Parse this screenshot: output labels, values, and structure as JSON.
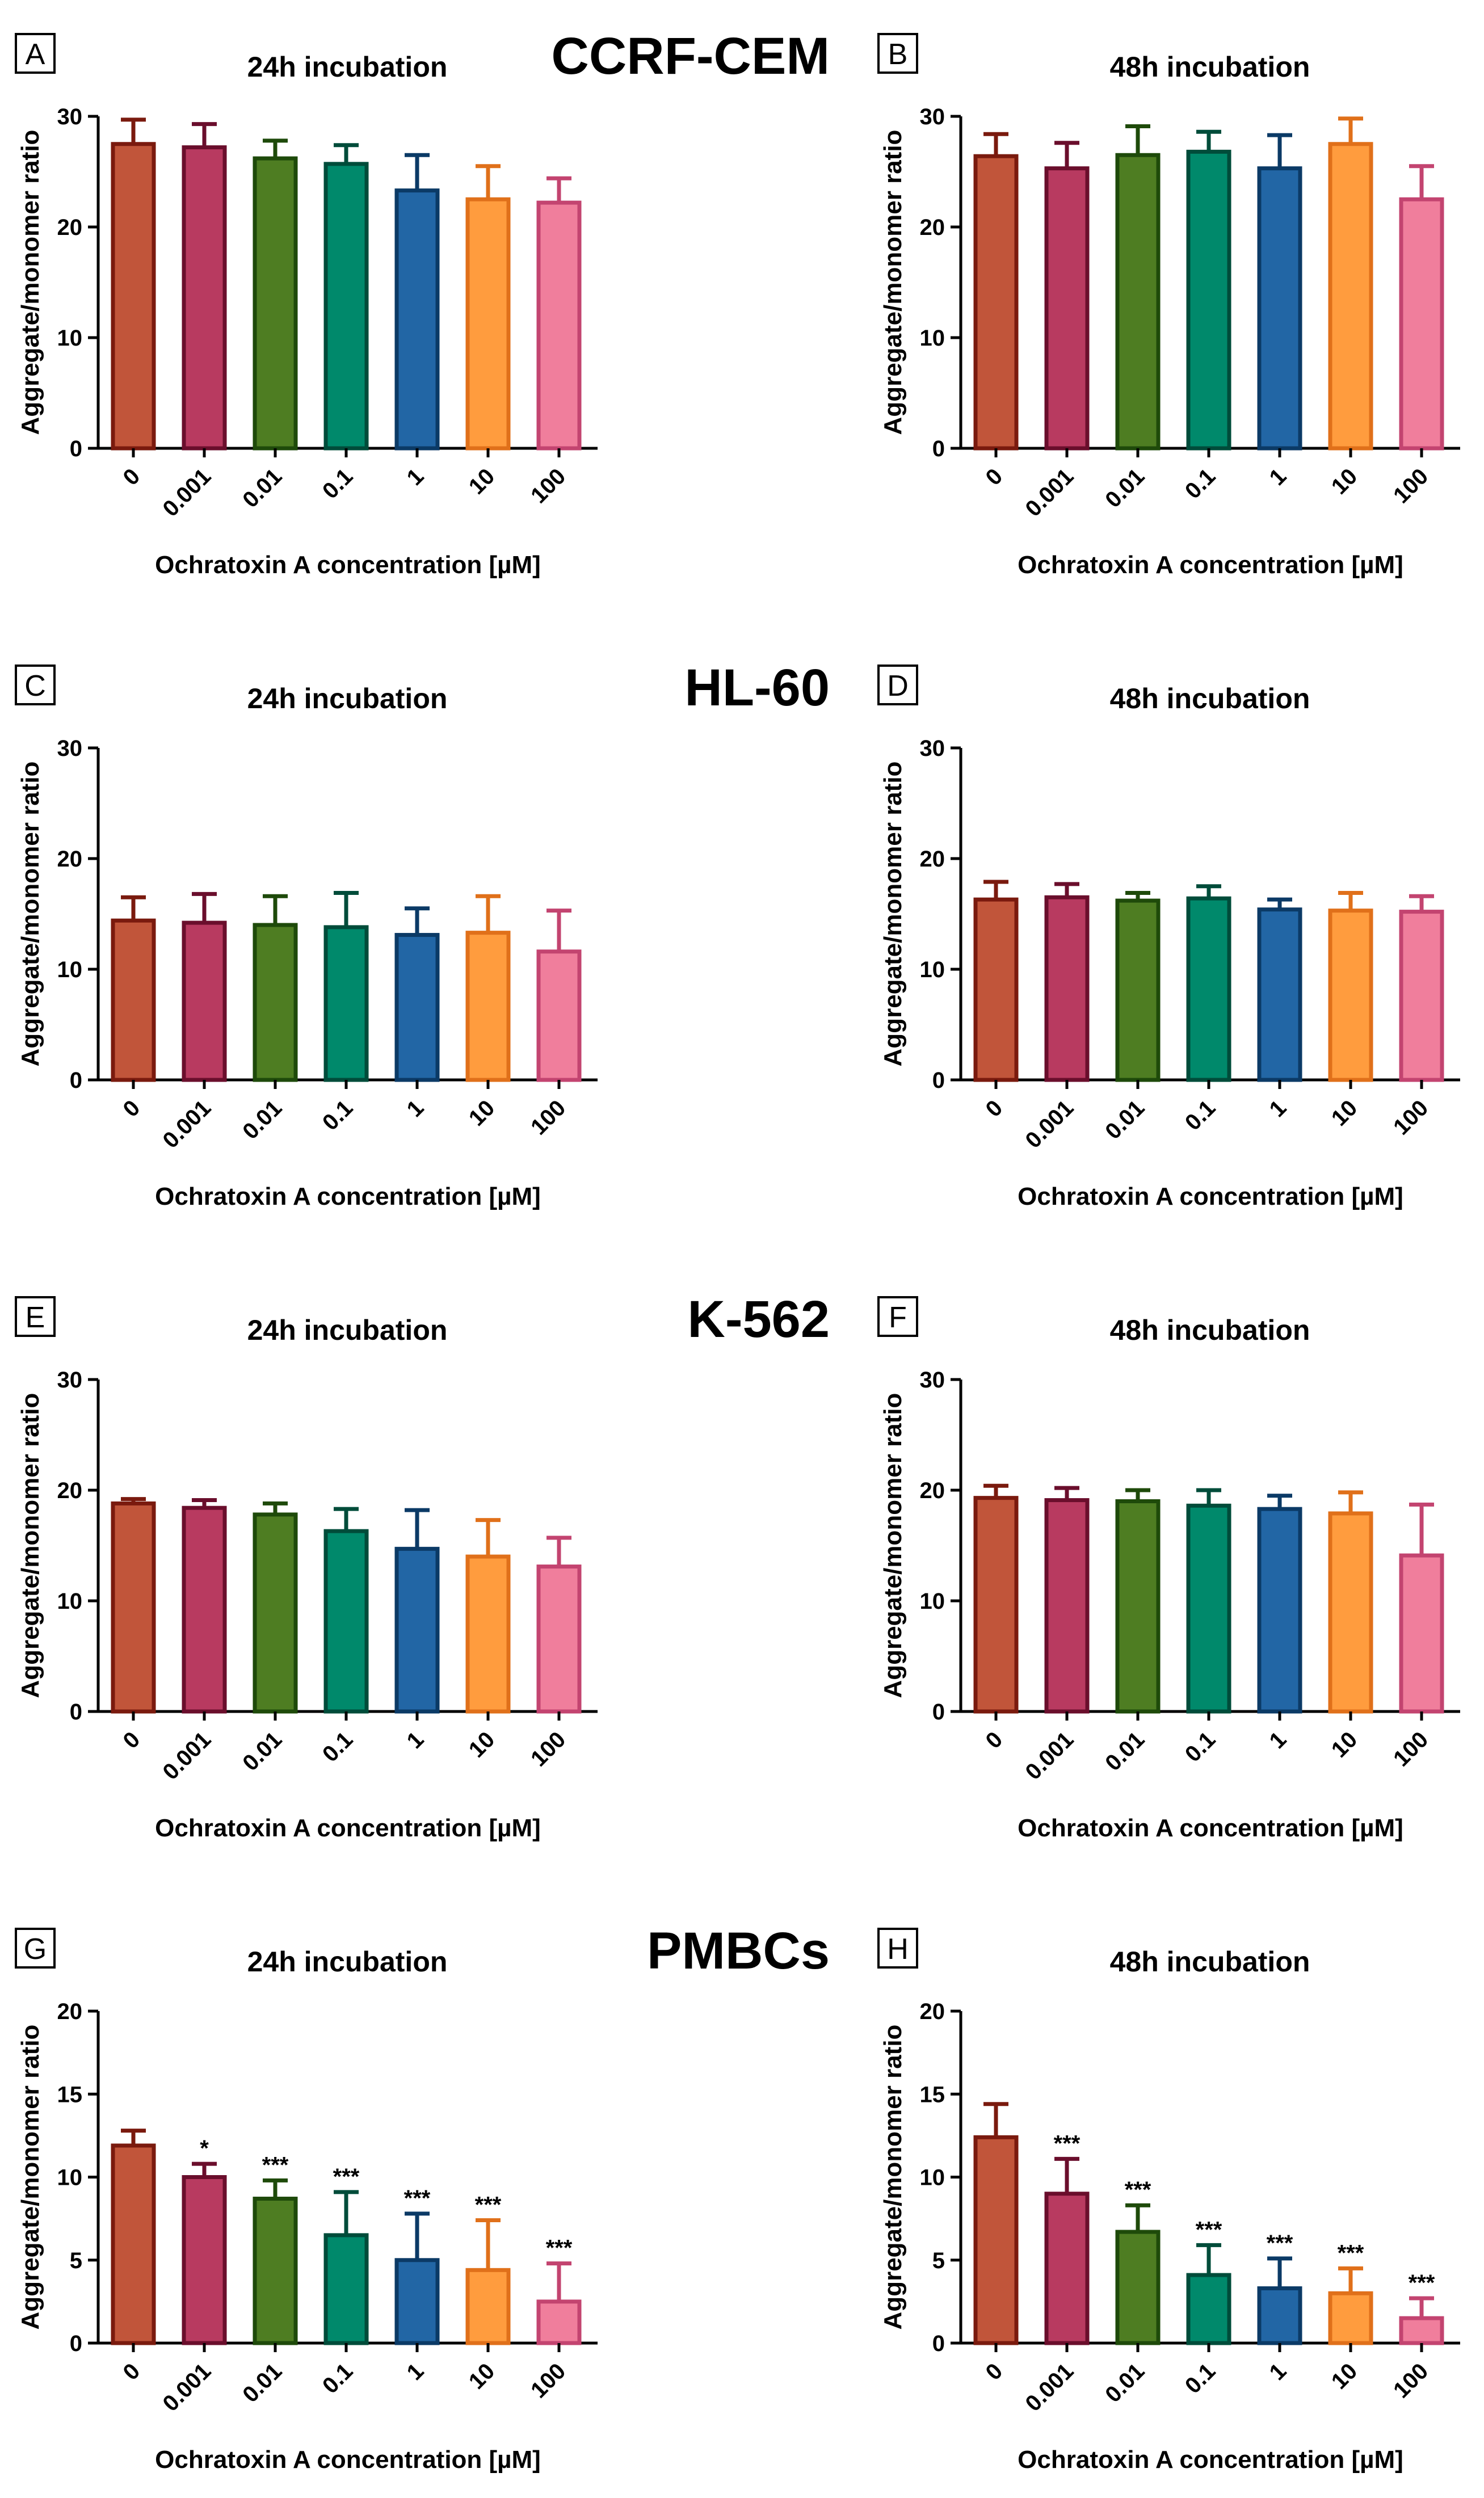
{
  "legend_categories": [
    "0",
    "0.001",
    "0.01",
    "0.1",
    "1",
    "10",
    "100"
  ],
  "series_colors": [
    {
      "fill": "#c1553a",
      "stroke": "#7a1a0e"
    },
    {
      "fill": "#b83a60",
      "stroke": "#6a0e2c"
    },
    {
      "fill": "#4e7d22",
      "stroke": "#1e4a0a"
    },
    {
      "fill": "#00896b",
      "stroke": "#004c3a"
    },
    {
      "fill": "#2266a5",
      "stroke": "#0b3a66"
    },
    {
      "fill": "#ff9c3e",
      "stroke": "#e0701a"
    },
    {
      "fill": "#f07e9c",
      "stroke": "#c34470"
    }
  ],
  "chart_data": [
    {
      "panel": "A",
      "cell_line": "CCRF-CEM",
      "title": "24h incubation",
      "type": "bar",
      "categories": [
        "0",
        "0.001",
        "0.01",
        "0.1",
        "1",
        "10",
        "100"
      ],
      "values": [
        27.5,
        27.2,
        26.2,
        25.7,
        23.3,
        22.5,
        22.2
      ],
      "errors": [
        2.2,
        2.1,
        1.6,
        1.7,
        3.2,
        3.0,
        2.2
      ],
      "significance": [
        "",
        "",
        "",
        "",
        "",
        "",
        ""
      ],
      "xlabel": "Ochratoxin A concentration [µM]",
      "ylabel": "Aggregate/monomer ratio",
      "ylim": [
        0,
        30
      ],
      "yticks": [
        "0",
        "10",
        "20",
        "30"
      ]
    },
    {
      "panel": "B",
      "cell_line": "",
      "title": "48h incubation",
      "type": "bar",
      "categories": [
        "0",
        "0.001",
        "0.01",
        "0.1",
        "1",
        "10",
        "100"
      ],
      "values": [
        26.4,
        25.3,
        26.5,
        26.8,
        25.3,
        27.5,
        22.5
      ],
      "errors": [
        2.0,
        2.3,
        2.6,
        1.8,
        3.0,
        2.3,
        3.0
      ],
      "significance": [
        "",
        "",
        "",
        "",
        "",
        "",
        ""
      ],
      "xlabel": "Ochratoxin A concentration [µM]",
      "ylabel": "Aggregate/monomer ratio",
      "ylim": [
        0,
        30
      ],
      "yticks": [
        "0",
        "10",
        "20",
        "30"
      ]
    },
    {
      "panel": "C",
      "cell_line": "HL-60",
      "title": "24h incubation",
      "type": "bar",
      "categories": [
        "0",
        "0.001",
        "0.01",
        "0.1",
        "1",
        "10",
        "100"
      ],
      "values": [
        14.4,
        14.2,
        14.0,
        13.8,
        13.1,
        13.3,
        11.6
      ],
      "errors": [
        2.1,
        2.6,
        2.6,
        3.1,
        2.4,
        3.3,
        3.7
      ],
      "significance": [
        "",
        "",
        "",
        "",
        "",
        "",
        ""
      ],
      "xlabel": "Ochratoxin A concentration [µM]",
      "ylabel": "Aggregate/monomer ratio",
      "ylim": [
        0,
        30
      ],
      "yticks": [
        "0",
        "10",
        "20",
        "30"
      ]
    },
    {
      "panel": "D",
      "cell_line": "",
      "title": "48h incubation",
      "type": "bar",
      "categories": [
        "0",
        "0.001",
        "0.01",
        "0.1",
        "1",
        "10",
        "100"
      ],
      "values": [
        16.3,
        16.5,
        16.2,
        16.4,
        15.4,
        15.3,
        15.2
      ],
      "errors": [
        1.6,
        1.2,
        0.7,
        1.1,
        0.9,
        1.6,
        1.4
      ],
      "significance": [
        "",
        "",
        "",
        "",
        "",
        "",
        ""
      ],
      "xlabel": "Ochratoxin A concentration [µM]",
      "ylabel": "Aggregate/monomer ratio",
      "ylim": [
        0,
        30
      ],
      "yticks": [
        "0",
        "10",
        "20",
        "30"
      ]
    },
    {
      "panel": "E",
      "cell_line": "K-562",
      "title": "24h incubation",
      "type": "bar",
      "categories": [
        "0",
        "0.001",
        "0.01",
        "0.1",
        "1",
        "10",
        "100"
      ],
      "values": [
        18.8,
        18.4,
        17.8,
        16.3,
        14.7,
        14.0,
        13.1
      ],
      "errors": [
        0.4,
        0.7,
        1.0,
        2.0,
        3.5,
        3.3,
        2.6
      ],
      "significance": [
        "",
        "",
        "",
        "",
        "",
        "",
        ""
      ],
      "xlabel": "Ochratoxin A concentration [µM]",
      "ylabel": "Aggregate/monomer ratio",
      "ylim": [
        0,
        30
      ],
      "yticks": [
        "0",
        "10",
        "20",
        "30"
      ]
    },
    {
      "panel": "F",
      "cell_line": "",
      "title": "48h incubation",
      "type": "bar",
      "categories": [
        "0",
        "0.001",
        "0.01",
        "0.1",
        "1",
        "10",
        "100"
      ],
      "values": [
        19.3,
        19.1,
        19.0,
        18.6,
        18.3,
        17.9,
        14.1
      ],
      "errors": [
        1.1,
        1.1,
        1.0,
        1.4,
        1.2,
        1.9,
        4.6
      ],
      "significance": [
        "",
        "",
        "",
        "",
        "",
        "",
        ""
      ],
      "xlabel": "Ochratoxin A concentration [µM]",
      "ylabel": "Aggregate/monomer ratio",
      "ylim": [
        0,
        30
      ],
      "yticks": [
        "0",
        "10",
        "20",
        "30"
      ]
    },
    {
      "panel": "G",
      "cell_line": "PMBCs",
      "title": "24h incubation",
      "type": "bar",
      "categories": [
        "0",
        "0.001",
        "0.01",
        "0.1",
        "1",
        "10",
        "100"
      ],
      "values": [
        11.9,
        10.0,
        8.7,
        6.5,
        5.0,
        4.4,
        2.5
      ],
      "errors": [
        0.9,
        0.8,
        1.1,
        2.6,
        2.8,
        3.0,
        2.3
      ],
      "significance": [
        "",
        "*",
        "***",
        "***",
        "***",
        "***",
        "***"
      ],
      "xlabel": "Ochratoxin A concentration [µM]",
      "ylabel": "Aggregate/monomer ratio",
      "ylim": [
        0,
        20
      ],
      "yticks": [
        "0",
        "5",
        "10",
        "15",
        "20"
      ]
    },
    {
      "panel": "H",
      "cell_line": "",
      "title": "48h incubation",
      "type": "bar",
      "categories": [
        "0",
        "0.001",
        "0.01",
        "0.1",
        "1",
        "10",
        "100"
      ],
      "values": [
        12.4,
        9.0,
        6.7,
        4.1,
        3.3,
        3.0,
        1.5
      ],
      "errors": [
        2.0,
        2.1,
        1.6,
        1.8,
        1.8,
        1.5,
        1.2
      ],
      "significance": [
        "",
        "***",
        "***",
        "***",
        "***",
        "***",
        "***"
      ],
      "xlabel": "Ochratoxin A concentration [µM]",
      "ylabel": "Aggregate/monomer ratio",
      "ylim": [
        0,
        20
      ],
      "yticks": [
        "0",
        "5",
        "10",
        "15",
        "20"
      ]
    }
  ]
}
